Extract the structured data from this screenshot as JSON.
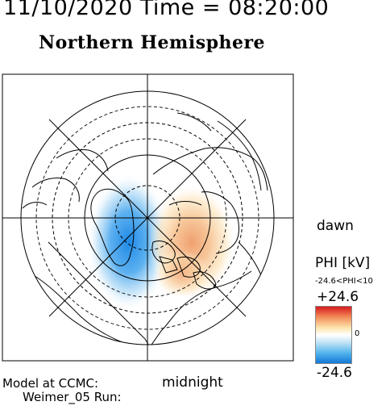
{
  "header": {
    "datetime": "11/10/2020 Time = 08:20:00",
    "hemisphere": "Northern Hemisphere"
  },
  "labels": {
    "dawn": "dawn",
    "midnight": "midnight",
    "model_line1": "Model at CCMC:",
    "model_line2": "Weimer_05 Run:"
  },
  "colorbar": {
    "title": "PHI [kV]",
    "range_text": "-24.6<PHI<10",
    "max": "+24.6",
    "zero": "0",
    "min": "-24.6",
    "colors": {
      "high": "#d7191c",
      "mid": "#ffffff",
      "low": "#1478d8"
    }
  }
}
